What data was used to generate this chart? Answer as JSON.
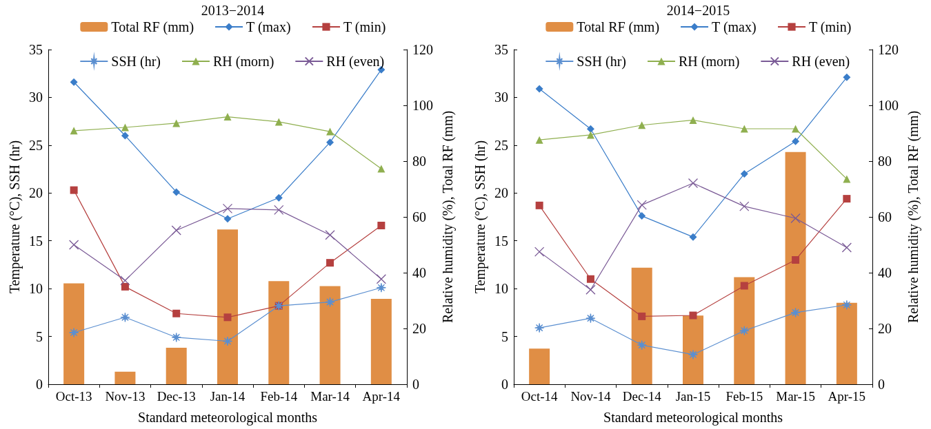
{
  "chart_data": [
    {
      "type": "line",
      "title": "2013−2014",
      "xlabel": "Standard meteorological months",
      "ylabel": "Temperature (°C), SSH (hr)",
      "y2label": "Relative humidity (%), Total RF (mm)",
      "categories": [
        "Oct-13",
        "Nov-13",
        "Dec-13",
        "Jan-14",
        "Feb-14",
        "Mar-14",
        "Apr-14"
      ],
      "ylim": [
        0,
        35
      ],
      "yticks": [
        0,
        5,
        10,
        15,
        20,
        25,
        30,
        35
      ],
      "y2lim": [
        0,
        120
      ],
      "y2ticks": [
        0,
        20,
        40,
        60,
        80,
        100,
        120
      ],
      "grid": false,
      "legend": "top",
      "series": [
        {
          "name": "Total RF (mm)",
          "type": "bar",
          "axis": "y2",
          "color": "#e08e45",
          "values": [
            36.2,
            4.5,
            13.1,
            55.5,
            37.0,
            35.2,
            30.6
          ]
        },
        {
          "name": "T (max)",
          "color": "#3a7dc9",
          "marker": "diamond",
          "values": [
            31.6,
            26.0,
            20.1,
            17.3,
            19.5,
            25.3,
            32.9
          ]
        },
        {
          "name": "T (min)",
          "color": "#b5403f",
          "marker": "square",
          "values": [
            20.3,
            10.2,
            7.4,
            7.0,
            8.2,
            12.7,
            16.6
          ]
        },
        {
          "name": "SSH (hr)",
          "color": "#5b8fd0",
          "marker": "star",
          "values": [
            5.4,
            7.0,
            4.9,
            4.5,
            8.2,
            8.6,
            10.1
          ]
        },
        {
          "name": "RH (morn)",
          "color": "#8faf4f",
          "marker": "triangle",
          "axis": "y2",
          "values": [
            90.9,
            92.1,
            93.6,
            95.9,
            94.1,
            90.6,
            77.3
          ]
        },
        {
          "name": "RH (even)",
          "color": "#7a5a96",
          "marker": "cross",
          "axis": "y2",
          "values": [
            50.0,
            37.2,
            55.2,
            63.0,
            62.5,
            53.5,
            37.7
          ]
        }
      ]
    },
    {
      "type": "line",
      "title": "2014−2015",
      "xlabel": "Standard meteorological months",
      "ylabel": "Temperature (°C), SSH (hr)",
      "y2label": "Relative humidity (%), Total RF (mm)",
      "categories": [
        "Oct-14",
        "Nov-14",
        "Dec-14",
        "Jan-15",
        "Feb-15",
        "Mar-15",
        "Apr-15"
      ],
      "ylim": [
        0,
        35
      ],
      "yticks": [
        0,
        5,
        10,
        15,
        20,
        25,
        30,
        35
      ],
      "y2lim": [
        0,
        120
      ],
      "y2ticks": [
        0,
        20,
        40,
        60,
        80,
        100,
        120
      ],
      "grid": false,
      "legend": "top",
      "series": [
        {
          "name": "Total RF (mm)",
          "type": "bar",
          "axis": "y2",
          "color": "#e08e45",
          "values": [
            12.8,
            0,
            41.8,
            24.6,
            38.4,
            83.3,
            29.2
          ]
        },
        {
          "name": "T (max)",
          "color": "#3a7dc9",
          "marker": "diamond",
          "values": [
            30.9,
            26.7,
            17.6,
            15.4,
            22.0,
            25.4,
            32.1
          ]
        },
        {
          "name": "T (min)",
          "color": "#b5403f",
          "marker": "square",
          "values": [
            18.7,
            11.0,
            7.1,
            7.2,
            10.3,
            13.0,
            19.4
          ]
        },
        {
          "name": "SSH (hr)",
          "color": "#5b8fd0",
          "marker": "star",
          "values": [
            5.9,
            6.9,
            4.1,
            3.1,
            5.6,
            7.5,
            8.3
          ]
        },
        {
          "name": "RH (morn)",
          "color": "#8faf4f",
          "marker": "triangle",
          "axis": "y2",
          "values": [
            87.6,
            89.4,
            92.9,
            94.7,
            91.6,
            91.6,
            73.6
          ]
        },
        {
          "name": "RH (even)",
          "color": "#7a5a96",
          "marker": "cross",
          "axis": "y2",
          "values": [
            47.5,
            33.9,
            64.3,
            72.1,
            63.8,
            59.5,
            49.0
          ]
        }
      ]
    }
  ]
}
